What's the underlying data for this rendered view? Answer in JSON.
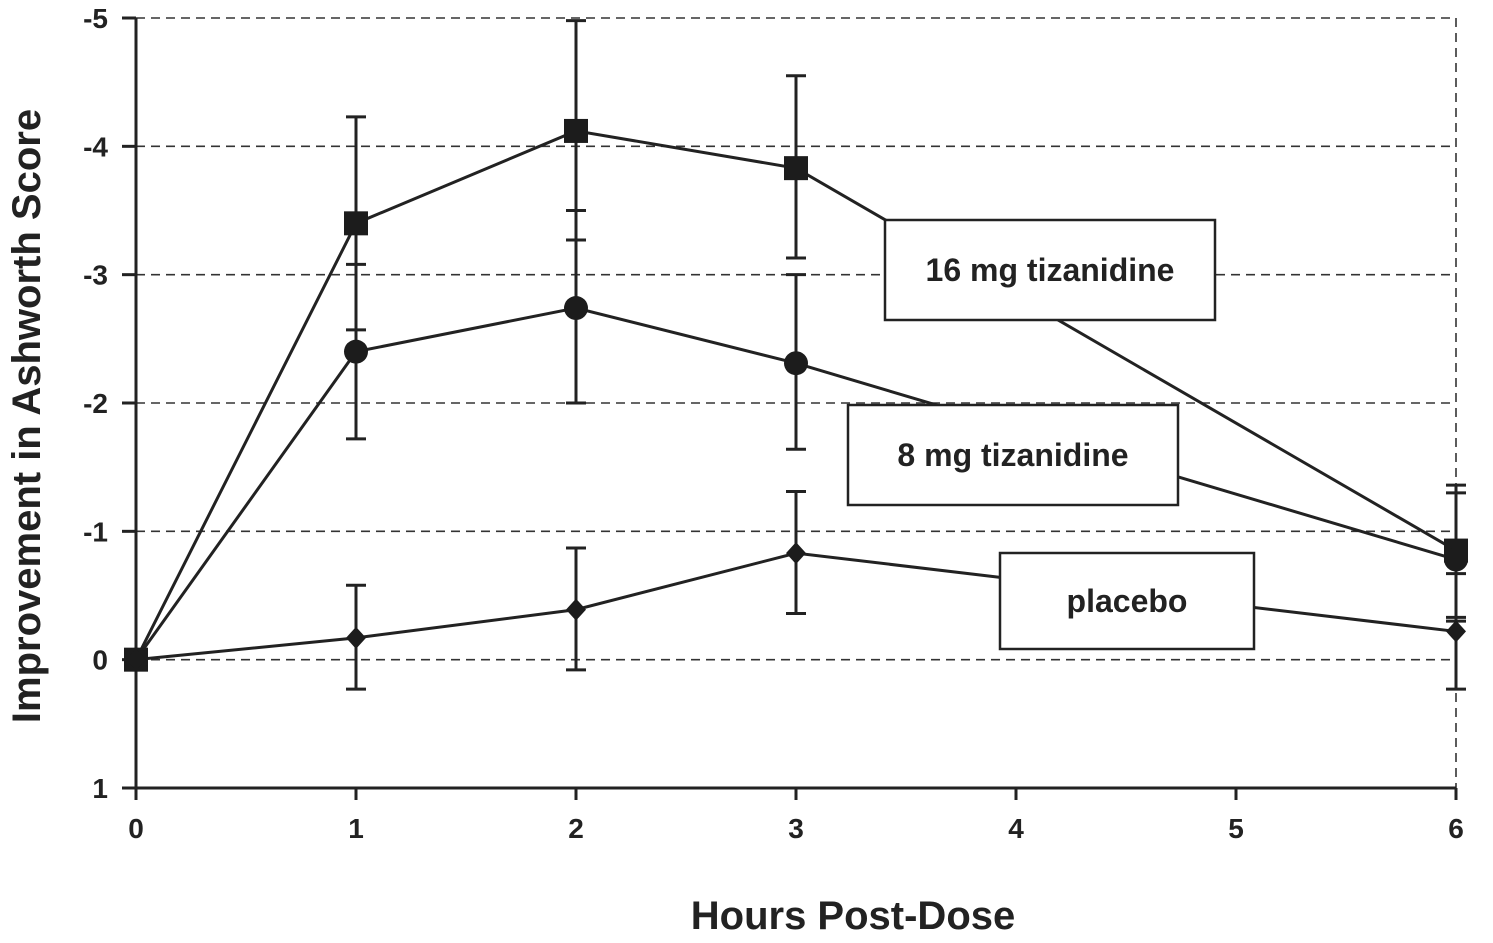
{
  "chart_data": {
    "type": "line",
    "title": "",
    "xlabel": "Hours Post-Dose",
    "ylabel": "Improvement in Ashworth Score",
    "xlim": [
      0,
      6
    ],
    "ylim": [
      1,
      -5
    ],
    "y_axis_inverted": true,
    "x_ticks": [
      0,
      1,
      2,
      3,
      4,
      5,
      6
    ],
    "y_ticks": [
      -5,
      -4,
      -3,
      -2,
      -1,
      0,
      1
    ],
    "grid": true,
    "series": [
      {
        "name": "16 mg tizanidine",
        "marker": "square",
        "x": [
          0,
          1,
          2,
          3,
          6
        ],
        "y": [
          0,
          -3.4,
          -4.12,
          -3.83,
          -0.85
        ],
        "err_low": [
          0,
          -2.57,
          -3.27,
          -3.13,
          -0.33
        ],
        "err_high": [
          0,
          -4.23,
          -4.98,
          -4.55,
          -1.36
        ]
      },
      {
        "name": "8 mg tizanidine",
        "marker": "circle",
        "x": [
          0,
          1,
          2,
          3,
          6
        ],
        "y": [
          0,
          -2.4,
          -2.74,
          -2.31,
          -0.78
        ],
        "err_low": [
          0,
          -1.72,
          -2.0,
          -1.64,
          -0.3
        ],
        "err_high": [
          0,
          -3.08,
          -3.5,
          -3.0,
          -1.3
        ]
      },
      {
        "name": "placebo",
        "marker": "diamond",
        "x": [
          0,
          1,
          2,
          3,
          6
        ],
        "y": [
          0,
          -0.17,
          -0.39,
          -0.83,
          -0.22
        ],
        "err_low": [
          0,
          0.23,
          0.08,
          -0.36,
          0.23
        ],
        "err_high": [
          0,
          -0.58,
          -0.87,
          -1.31,
          -0.67
        ]
      }
    ],
    "legend_labels": [
      "16 mg tizanidine",
      "8 mg tizanidine",
      "placebo"
    ],
    "legend_placement": "inline boxes near series"
  }
}
